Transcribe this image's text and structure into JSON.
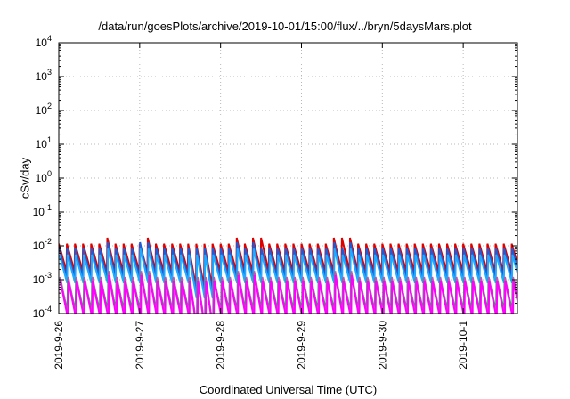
{
  "chart_data": {
    "type": "line",
    "title": "/data/run/goesPlots/archive/2019-10-01/15:00/flux/../bryn/5daysMars.plot",
    "xlabel": "Coordinated Universal Time (UTC)",
    "ylabel": "cSv/day",
    "x_ticks": [
      "2019-9-26",
      "2019-9-27",
      "2019-9-28",
      "2019-9-29",
      "2019-9-30",
      "2019-10-1"
    ],
    "x_range_days": [
      0,
      5.67
    ],
    "y_scale": "log",
    "ylim": [
      0.0001,
      10000
    ],
    "y_tick_exponents": [
      -4,
      -3,
      -2,
      -1,
      0,
      1,
      2,
      3,
      4
    ],
    "grid": true,
    "pattern": {
      "period_days": 0.1,
      "dip_days": [
        1.62,
        1.72,
        1.82
      ],
      "peak_boost_days": [
        0.58,
        1.05,
        1.15,
        2.25,
        2.45,
        3.45,
        3.62
      ]
    },
    "series": [
      {
        "color": "#dd0000",
        "peak": 0.0115,
        "trough": 0.0018
      },
      {
        "color": "#1e5bd6",
        "peak": 0.0085,
        "trough": 0.00115
      },
      {
        "color": "#20aaff",
        "peak": 0.0055,
        "trough": 0.0008
      },
      {
        "color": "#00aa44",
        "peak": 0.0011,
        "trough": 0.00012
      },
      {
        "color": "#b060b0",
        "peak": 0.0012,
        "trough": 9e-05
      },
      {
        "color": "#ff00ff",
        "peak": 0.0009,
        "trough": 7e-05
      }
    ]
  }
}
